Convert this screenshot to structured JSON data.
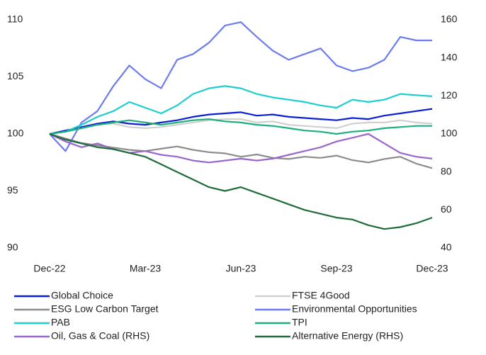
{
  "chart_data": {
    "type": "line",
    "categories": [
      "Dec-22",
      null,
      null,
      null,
      null,
      null,
      "Mar-23",
      null,
      null,
      null,
      null,
      null,
      "Jun-23",
      null,
      null,
      null,
      null,
      null,
      "Sep-23",
      null,
      null,
      null,
      null,
      null,
      "Dec-23"
    ],
    "ylim": [
      90,
      110
    ],
    "yticks": [
      90,
      95,
      100,
      105,
      110
    ],
    "y2lim": [
      40,
      160
    ],
    "y2ticks": [
      40,
      60,
      80,
      100,
      120,
      140,
      160
    ],
    "series": [
      {
        "name": "Global Choice",
        "color": "#0a1fd6",
        "values": [
          100,
          100.3,
          100.6,
          100.9,
          101.1,
          100.9,
          100.8,
          101.0,
          101.2,
          101.5,
          101.7,
          101.8,
          101.9,
          101.6,
          101.7,
          101.5,
          101.4,
          101.3,
          101.2,
          101.4,
          101.3,
          101.6,
          101.8,
          102.0,
          102.2
        ]
      },
      {
        "name": "FTSE 4Good",
        "color": "#d0d0d0",
        "values": [
          100,
          100.2,
          100.5,
          100.8,
          100.9,
          100.6,
          100.5,
          100.6,
          100.8,
          101.0,
          101.2,
          101.3,
          101.3,
          101.0,
          101.1,
          100.8,
          100.7,
          100.6,
          100.5,
          100.9,
          101.0,
          101.0,
          101.2,
          101.0,
          100.9
        ]
      },
      {
        "name": "ESG Low Carbon Target",
        "color": "#8c8c8c",
        "values": [
          100,
          99.6,
          99.2,
          99.0,
          98.8,
          98.6,
          98.5,
          98.7,
          98.9,
          98.6,
          98.4,
          98.3,
          98.0,
          98.2,
          97.9,
          97.8,
          98.0,
          97.9,
          98.1,
          97.7,
          97.5,
          97.8,
          98.0,
          97.4,
          97.0
        ]
      },
      {
        "name": "Environmental Opportunities",
        "color": "#6b7cf0",
        "values": [
          100,
          98.5,
          101,
          102,
          104.2,
          106,
          104.8,
          104,
          106.5,
          107,
          108,
          109.5,
          109.8,
          108.5,
          107.3,
          106.5,
          107,
          107.5,
          106,
          105.5,
          105.8,
          106.5,
          108.5,
          108.2,
          108.2
        ]
      },
      {
        "name": "PAB",
        "color": "#1ccfcf",
        "values": [
          100,
          100.2,
          100.8,
          101.5,
          102,
          102.8,
          102.3,
          101.8,
          102.5,
          103.5,
          104,
          104.2,
          104,
          103.5,
          103.2,
          103,
          102.8,
          102.5,
          102.3,
          103,
          102.8,
          103,
          103.5,
          103.4,
          103.3
        ]
      },
      {
        "name": "TPI",
        "color": "#1db07a",
        "values": [
          100,
          100.2,
          100.5,
          100.8,
          101.0,
          101.2,
          101.0,
          100.8,
          101.0,
          101.2,
          101.3,
          101.1,
          101.0,
          100.8,
          100.7,
          100.5,
          100.3,
          100.2,
          100.0,
          100.2,
          100.3,
          100.5,
          100.6,
          100.7,
          100.7
        ]
      },
      {
        "name": "Oil, Gas & Coal (RHS)",
        "color": "#9966cc",
        "axis": "y2",
        "values": [
          100,
          96,
          93,
          95,
          92,
          90,
          91,
          89,
          88,
          86,
          85,
          86,
          87,
          86,
          87,
          89,
          91,
          93,
          96,
          98,
          100,
          95,
          90,
          88,
          87
        ]
      },
      {
        "name": "Alternative Energy (RHS)",
        "color": "#1f6b3a",
        "axis": "y2",
        "values": [
          100,
          97,
          95,
          93,
          92,
          90,
          88,
          84,
          80,
          76,
          72,
          70,
          72,
          69,
          66,
          63,
          60,
          58,
          56,
          55,
          52,
          50,
          51,
          53,
          56
        ]
      }
    ]
  }
}
